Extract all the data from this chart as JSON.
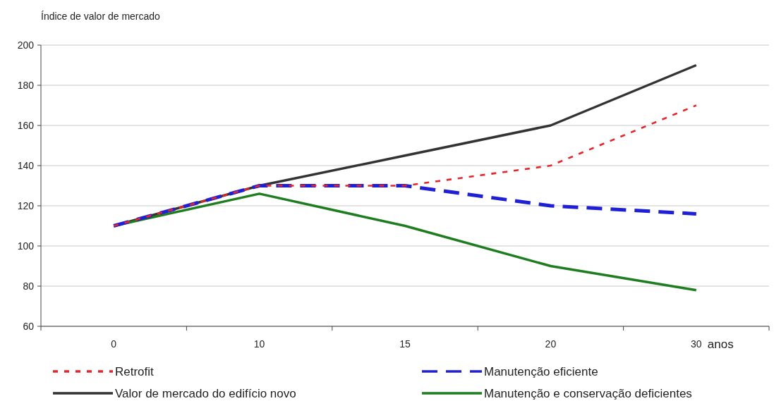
{
  "chart_data": {
    "type": "line",
    "ylabel": "Índice de valor de mercado",
    "xlabel": "anos",
    "categories": [
      "0",
      "10",
      "15",
      "20",
      "30"
    ],
    "ylim": [
      60,
      200
    ],
    "yticks": [
      60,
      80,
      100,
      120,
      140,
      160,
      180,
      200
    ],
    "grid": "y",
    "legend": "bottom",
    "marker": "none",
    "series": [
      {
        "name": "Retrofit",
        "color": "#e8242b",
        "line_style": "dotted",
        "values": [
          110,
          130,
          130,
          140,
          170
        ]
      },
      {
        "name": "Manutenção eficiente",
        "color": "#1f1fd6",
        "line_style": "dashed",
        "values": [
          110,
          130,
          130,
          120,
          116
        ]
      },
      {
        "name": "Valor de mercado do edifício novo",
        "color": "#333333",
        "line_style": "solid",
        "values": [
          110,
          130,
          145,
          160,
          190
        ]
      },
      {
        "name": "Manutenção e conservação deficientes",
        "color": "#1e7d1e",
        "line_style": "solid",
        "values": [
          110,
          126,
          110,
          90,
          78
        ]
      }
    ]
  }
}
